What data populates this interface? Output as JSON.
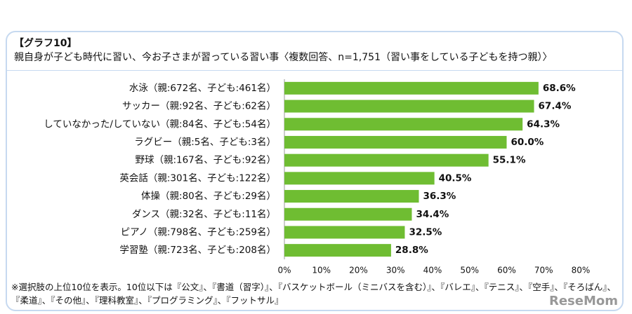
{
  "chart_data": {
    "type": "barh",
    "figure_label": "【グラフ10】",
    "title": "親自身が子ども時代に習い、今お子さまが習っている習い事〈複数回答、n=1,751（習い事をしている子どもを持つ親）〉",
    "categories": [
      "水泳（親:672名、子ども:461名）",
      "サッカー（親:92名、子ども:62名）",
      "していなかった/していない（親:84名、子ども:54名）",
      "ラグビー（親:5名、子ども:3名）",
      "野球（親:167名、子ども:92名）",
      "英会話（親:301名、子ども:122名）",
      "体操（親:80名、子ども:29名）",
      "ダンス（親:32名、子ども:11名）",
      "ピアノ（親:798名、子ども:259名）",
      "学習塾（親:723名、子ども:208名）"
    ],
    "values": [
      68.6,
      67.4,
      64.3,
      60.0,
      55.1,
      40.5,
      36.3,
      34.4,
      32.5,
      28.8
    ],
    "value_labels": [
      "68.6%",
      "67.4%",
      "64.3%",
      "60.0%",
      "55.1%",
      "40.5%",
      "36.3%",
      "34.4%",
      "32.5%",
      "28.8%"
    ],
    "color": "#6fbd32",
    "xlim": [
      0,
      80
    ],
    "xticks": [
      {
        "value": 0,
        "label": "0%"
      },
      {
        "value": 10,
        "label": "10%"
      },
      {
        "value": 20,
        "label": "20%"
      },
      {
        "value": 30,
        "label": "30%"
      },
      {
        "value": 40,
        "label": "40%"
      },
      {
        "value": 50,
        "label": "50%"
      },
      {
        "value": 60,
        "label": "60%"
      },
      {
        "value": 70,
        "label": "70%"
      },
      {
        "value": 80,
        "label": "80%"
      }
    ],
    "grid": false,
    "footnote": "※選択肢の上位10位を表示。10位以下は『公文』、『書道（習字）』、『バスケットボール（ミニバスを含む）』、『バレエ』、『テニス』、『空手』、『そろばん』、『柔道』、『その他』、『理科教室』、『プログラミング』、『フットサル』",
    "watermark": "ReseMom"
  }
}
